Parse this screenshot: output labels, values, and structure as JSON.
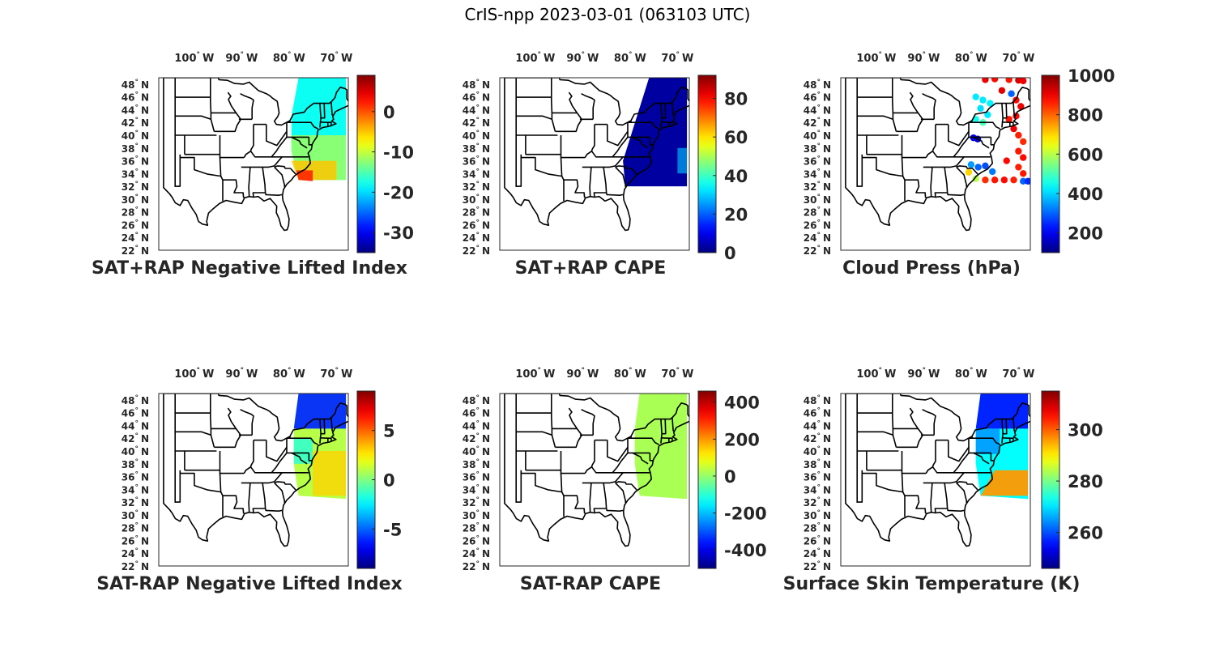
{
  "figure": {
    "title": "CrIS-npp 2023-03-01 (063103 UTC)"
  },
  "axes": {
    "lon_ticks": [
      {
        "lon": -100,
        "deg": "100",
        "hemi": "W"
      },
      {
        "lon": -90,
        "deg": "90",
        "hemi": "W"
      },
      {
        "lon": -80,
        "deg": "80",
        "hemi": "W"
      },
      {
        "lon": -70,
        "deg": "70",
        "hemi": "W"
      }
    ],
    "lat_ticks": [
      {
        "lat": 48,
        "deg": "48",
        "hemi": "N"
      },
      {
        "lat": 46,
        "deg": "46",
        "hemi": "N"
      },
      {
        "lat": 44,
        "deg": "44",
        "hemi": "N"
      },
      {
        "lat": 42,
        "deg": "42",
        "hemi": "N"
      },
      {
        "lat": 40,
        "deg": "40",
        "hemi": "N"
      },
      {
        "lat": 38,
        "deg": "38",
        "hemi": "N"
      },
      {
        "lat": 36,
        "deg": "36",
        "hemi": "N"
      },
      {
        "lat": 34,
        "deg": "34",
        "hemi": "N"
      },
      {
        "lat": 32,
        "deg": "32",
        "hemi": "N"
      },
      {
        "lat": 30,
        "deg": "30",
        "hemi": "N"
      },
      {
        "lat": 28,
        "deg": "28",
        "hemi": "N"
      },
      {
        "lat": 26,
        "deg": "26",
        "hemi": "N"
      },
      {
        "lat": 24,
        "deg": "24",
        "hemi": "N"
      },
      {
        "lat": 22,
        "deg": "22",
        "hemi": "N"
      }
    ],
    "lon_range": [
      -107.5,
      -67.5
    ],
    "lat_range": [
      22,
      49
    ]
  },
  "panels": [
    {
      "id": "p1",
      "title": "SAT+RAP Negative Lifted Index",
      "colorbar": {
        "min": -35,
        "max": 9,
        "ticks": [
          "0",
          "-10",
          "-20",
          "-30"
        ],
        "tick_values": [
          0,
          -10,
          -20,
          -30
        ]
      }
    },
    {
      "id": "p2",
      "title": "SAT+RAP CAPE",
      "colorbar": {
        "min": 0,
        "max": 92,
        "ticks": [
          "80",
          "60",
          "40",
          "20",
          "0"
        ],
        "tick_values": [
          80,
          60,
          40,
          20,
          0
        ]
      }
    },
    {
      "id": "p3",
      "title": "Cloud Press (hPa)",
      "colorbar": {
        "min": 100,
        "max": 1000,
        "ticks": [
          "1000",
          "800",
          "600",
          "400",
          "200"
        ],
        "tick_values": [
          1000,
          800,
          600,
          400,
          200
        ]
      }
    },
    {
      "id": "p4",
      "title": "SAT-RAP Negative Lifted Index",
      "colorbar": {
        "min": -9,
        "max": 9,
        "ticks": [
          "5",
          "0",
          "-5"
        ],
        "tick_values": [
          5,
          0,
          -5
        ]
      }
    },
    {
      "id": "p5",
      "title": "SAT-RAP CAPE",
      "colorbar": {
        "min": -500,
        "max": 460,
        "ticks": [
          "400",
          "200",
          "0",
          "-200",
          "-400"
        ],
        "tick_values": [
          400,
          200,
          0,
          -200,
          -400
        ]
      }
    },
    {
      "id": "p6",
      "title": "Surface Skin Temperature (K)",
      "colorbar": {
        "min": 246,
        "max": 315,
        "ticks": [
          "300",
          "280",
          "260"
        ],
        "tick_values": [
          300,
          280,
          260
        ]
      }
    }
  ],
  "colormap": "jet",
  "colors": {
    "map_lines": "#000000",
    "axes": "#262626",
    "background": "#ffffff"
  }
}
